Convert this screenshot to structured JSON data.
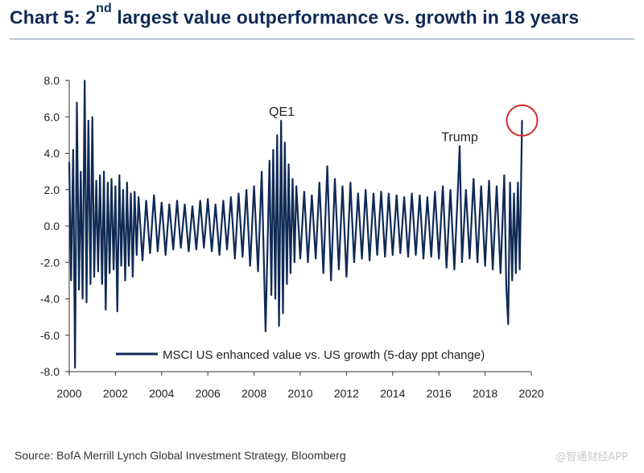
{
  "header": {
    "title_prefix": "Chart 5: 2",
    "title_sup": "nd",
    "title_suffix": " largest value outperformance vs. growth in 18 years"
  },
  "footer": {
    "source": "Source: BofA Merrill Lynch Global Investment Strategy, Bloomberg",
    "watermark": "@智通财经APP"
  },
  "colors": {
    "series": "#0f2a55",
    "highlight": "#d42a2a",
    "axis": "#333333"
  },
  "chart_data": {
    "type": "line",
    "title": "Chart 5: 2nd largest value outperformance vs. growth in 18 years",
    "xlabel": "",
    "ylabel": "",
    "xlim": [
      2000,
      2020
    ],
    "ylim": [
      -8,
      8
    ],
    "x_ticks": [
      "2000",
      "2002",
      "2004",
      "2006",
      "2008",
      "2010",
      "2012",
      "2014",
      "2016",
      "2018",
      "2020"
    ],
    "y_ticks": [
      "8.0",
      "6.0",
      "4.0",
      "2.0",
      "0.0",
      "-2.0",
      "-4.0",
      "-6.0",
      "-8.0"
    ],
    "legend": {
      "position": "bottom-right",
      "label": "MSCI US enhanced value vs. US growth (5-day ppt change)"
    },
    "annotations": [
      {
        "text": "QE1",
        "x": 2009.2,
        "y": 5.8
      },
      {
        "text": "Trump",
        "x": 2016.9,
        "y": 4.4
      }
    ],
    "highlight": {
      "x": 2019.6,
      "y": 5.8,
      "label": "circled latest spike"
    },
    "series": [
      {
        "name": "MSCI US enhanced value vs. US growth (5-day ppt change)",
        "x": [
          2000.0,
          2000.08,
          2000.17,
          2000.25,
          2000.33,
          2000.42,
          2000.5,
          2000.58,
          2000.67,
          2000.75,
          2000.83,
          2000.92,
          2001.0,
          2001.08,
          2001.17,
          2001.25,
          2001.33,
          2001.42,
          2001.5,
          2001.58,
          2001.67,
          2001.75,
          2001.83,
          2001.92,
          2002.0,
          2002.08,
          2002.17,
          2002.25,
          2002.33,
          2002.42,
          2002.5,
          2002.58,
          2002.67,
          2002.75,
          2002.83,
          2002.92,
          2003.0,
          2003.17,
          2003.33,
          2003.5,
          2003.67,
          2003.83,
          2004.0,
          2004.17,
          2004.33,
          2004.5,
          2004.67,
          2004.83,
          2005.0,
          2005.17,
          2005.33,
          2005.5,
          2005.67,
          2005.83,
          2006.0,
          2006.17,
          2006.33,
          2006.5,
          2006.67,
          2006.83,
          2007.0,
          2007.17,
          2007.33,
          2007.5,
          2007.67,
          2007.83,
          2008.0,
          2008.17,
          2008.33,
          2008.5,
          2008.67,
          2008.75,
          2008.83,
          2008.92,
          2009.0,
          2009.08,
          2009.17,
          2009.25,
          2009.33,
          2009.42,
          2009.5,
          2009.58,
          2009.67,
          2009.75,
          2009.83,
          2010.0,
          2010.17,
          2010.33,
          2010.5,
          2010.67,
          2010.83,
          2011.0,
          2011.17,
          2011.33,
          2011.5,
          2011.67,
          2011.83,
          2012.0,
          2012.17,
          2012.33,
          2012.5,
          2012.67,
          2012.83,
          2013.0,
          2013.17,
          2013.33,
          2013.5,
          2013.67,
          2013.83,
          2014.0,
          2014.17,
          2014.33,
          2014.5,
          2014.67,
          2014.83,
          2015.0,
          2015.17,
          2015.33,
          2015.5,
          2015.67,
          2015.83,
          2016.0,
          2016.17,
          2016.33,
          2016.5,
          2016.67,
          2016.83,
          2016.9,
          2017.0,
          2017.17,
          2017.33,
          2017.5,
          2017.67,
          2017.83,
          2018.0,
          2018.17,
          2018.33,
          2018.5,
          2018.67,
          2018.83,
          2018.92,
          2019.0,
          2019.08,
          2019.17,
          2019.25,
          2019.33,
          2019.42,
          2019.5,
          2019.6
        ],
        "values": [
          3.5,
          -3.0,
          4.2,
          -7.8,
          6.8,
          -3.5,
          3.0,
          -4.0,
          8.0,
          -4.2,
          5.8,
          -3.2,
          6.0,
          -2.8,
          2.5,
          -2.5,
          2.8,
          -3.2,
          3.0,
          -4.6,
          2.4,
          -2.6,
          2.6,
          -2.4,
          2.2,
          -4.7,
          2.8,
          -2.2,
          2.0,
          -3.0,
          2.4,
          -2.2,
          1.8,
          -2.8,
          1.9,
          -1.6,
          1.6,
          -1.9,
          1.4,
          -1.5,
          1.7,
          -1.4,
          1.3,
          -1.6,
          1.2,
          -1.3,
          1.4,
          -1.2,
          1.2,
          -1.4,
          1.1,
          -1.3,
          1.4,
          -1.2,
          1.5,
          -1.4,
          1.2,
          -1.6,
          1.4,
          -1.3,
          1.6,
          -1.8,
          1.8,
          -1.7,
          2.0,
          -2.2,
          2.2,
          -2.5,
          3.0,
          -5.8,
          3.6,
          -3.8,
          4.2,
          -4.0,
          5.0,
          -5.5,
          5.8,
          -4.8,
          4.6,
          -3.2,
          3.4,
          -2.6,
          2.6,
          -2.0,
          2.2,
          -1.8,
          1.9,
          -2.0,
          1.7,
          -1.8,
          2.4,
          -2.6,
          3.3,
          -3.0,
          2.6,
          -2.4,
          2.2,
          -2.8,
          2.4,
          -2.0,
          1.8,
          -1.8,
          2.0,
          -1.9,
          1.8,
          -1.6,
          1.9,
          -1.7,
          1.8,
          -1.6,
          1.7,
          -1.5,
          1.6,
          -1.7,
          1.8,
          -1.6,
          1.7,
          -1.8,
          1.6,
          -1.7,
          1.9,
          -1.8,
          2.2,
          -2.3,
          2.0,
          -2.4,
          2.2,
          4.4,
          -2.0,
          2.0,
          -1.8,
          2.6,
          -2.0,
          2.2,
          -2.2,
          2.5,
          -2.4,
          2.2,
          -2.6,
          2.8,
          -3.4,
          -5.4,
          2.4,
          -3.0,
          1.8,
          -2.6,
          2.4,
          -2.4,
          5.8
        ]
      }
    ]
  }
}
